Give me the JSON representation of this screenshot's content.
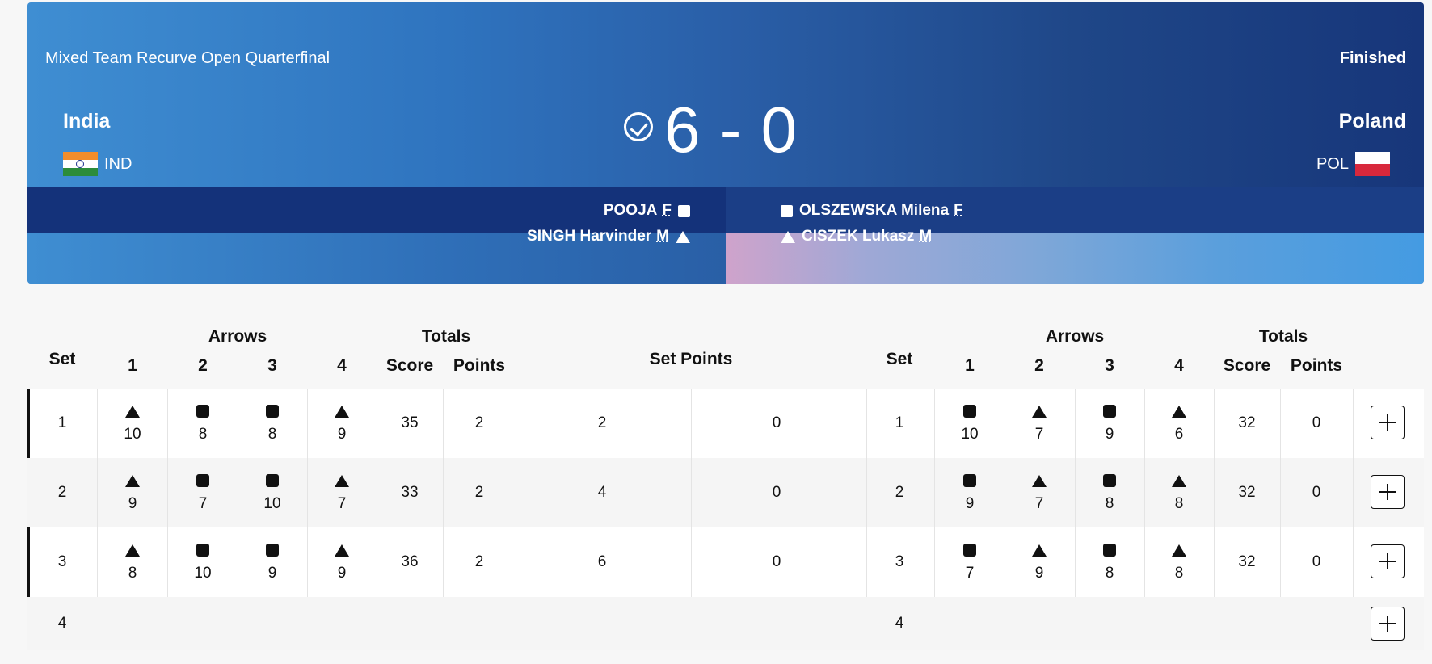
{
  "header": {
    "event": "Mixed Team Recurve Open Quarterfinal",
    "status": "Finished",
    "left_team": {
      "name": "India",
      "code": "IND",
      "flag_icon": "india-flag"
    },
    "right_team": {
      "name": "Poland",
      "code": "POL",
      "flag_icon": "poland-flag"
    },
    "score": "6 - 0",
    "winner_icon": "check-circle-icon",
    "left_athletes": [
      {
        "name": "POOJA",
        "gender": "F",
        "symbol": "square"
      },
      {
        "name": "SINGH Harvinder",
        "gender": "M",
        "symbol": "triangle"
      }
    ],
    "right_athletes": [
      {
        "name": "OLSZEWSKA Milena",
        "gender": "F",
        "symbol": "square"
      },
      {
        "name": "CISZEK Lukasz",
        "gender": "M",
        "symbol": "triangle"
      }
    ]
  },
  "table": {
    "headers": {
      "set": "Set",
      "arrows": "Arrows",
      "totals": "Totals",
      "a1": "1",
      "a2": "2",
      "a3": "3",
      "a4": "4",
      "score": "Score",
      "points": "Points",
      "set_points": "Set Points"
    },
    "rows": [
      {
        "set": "1",
        "left": {
          "symbols": [
            "triangle",
            "square",
            "square",
            "triangle"
          ],
          "arrows": [
            "10",
            "8",
            "8",
            "9"
          ],
          "score": "35",
          "points": "2"
        },
        "set_points_left": "2",
        "set_points_right": "0",
        "right": {
          "set": "1",
          "symbols": [
            "square",
            "triangle",
            "square",
            "triangle"
          ],
          "arrows": [
            "10",
            "7",
            "9",
            "6"
          ],
          "score": "32",
          "points": "0"
        }
      },
      {
        "set": "2",
        "left": {
          "symbols": [
            "triangle",
            "square",
            "square",
            "triangle"
          ],
          "arrows": [
            "9",
            "7",
            "10",
            "7"
          ],
          "score": "33",
          "points": "2"
        },
        "set_points_left": "4",
        "set_points_right": "0",
        "right": {
          "set": "2",
          "symbols": [
            "square",
            "triangle",
            "square",
            "triangle"
          ],
          "arrows": [
            "9",
            "7",
            "8",
            "8"
          ],
          "score": "32",
          "points": "0"
        }
      },
      {
        "set": "3",
        "left": {
          "symbols": [
            "triangle",
            "square",
            "square",
            "triangle"
          ],
          "arrows": [
            "8",
            "10",
            "9",
            "9"
          ],
          "score": "36",
          "points": "2"
        },
        "set_points_left": "6",
        "set_points_right": "0",
        "right": {
          "set": "3",
          "symbols": [
            "square",
            "triangle",
            "square",
            "triangle"
          ],
          "arrows": [
            "7",
            "9",
            "8",
            "8"
          ],
          "score": "32",
          "points": "0"
        }
      },
      {
        "set": "4",
        "left": {
          "symbols": [],
          "arrows": [],
          "score": "",
          "points": ""
        },
        "set_points_left": "",
        "set_points_right": "",
        "right": {
          "set": "4",
          "symbols": [],
          "arrows": [],
          "score": "",
          "points": ""
        }
      }
    ],
    "expand_icon": "plus-icon"
  }
}
